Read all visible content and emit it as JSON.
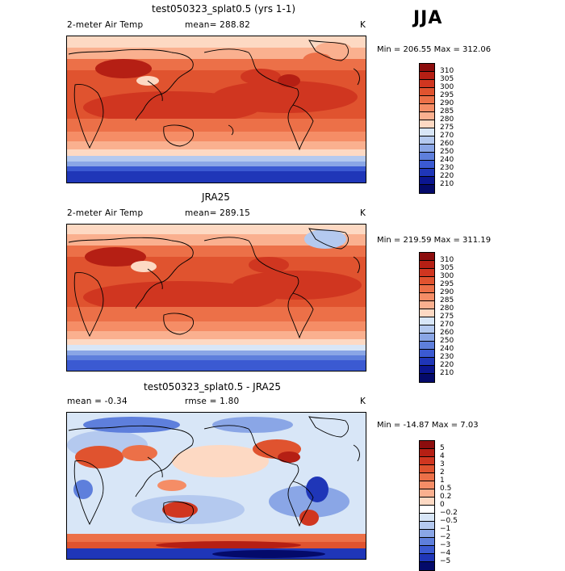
{
  "season": "JJA",
  "panels": [
    {
      "title": "test050323_splat0.5 (yrs 1-1)",
      "left_label": "2-meter Air Temp",
      "center_label": "mean= 288.82",
      "unit": "K",
      "minmax": "Min = 206.55 Max = 312.06",
      "levels": [
        "310",
        "305",
        "300",
        "295",
        "290",
        "285",
        "280",
        "275",
        "270",
        "260",
        "250",
        "240",
        "230",
        "220",
        "210"
      ],
      "colors": [
        "#8c0d0d",
        "#b51f14",
        "#d03620",
        "#e0532f",
        "#ec7048",
        "#f58d66",
        "#fab08f",
        "#fdd9c3",
        "#d8e6f7",
        "#b4c9ef",
        "#8aa6e6",
        "#5e7fdc",
        "#3b5ad2",
        "#1f36b8",
        "#0b1690",
        "#040a6a"
      ]
    },
    {
      "title": "JRA25",
      "left_label": "2-meter Air Temp",
      "center_label": "mean= 289.15",
      "unit": "K",
      "minmax": "Min = 219.59 Max = 311.19",
      "levels": [
        "310",
        "305",
        "300",
        "295",
        "290",
        "285",
        "280",
        "275",
        "270",
        "260",
        "250",
        "240",
        "230",
        "220",
        "210"
      ],
      "colors": [
        "#8c0d0d",
        "#b51f14",
        "#d03620",
        "#e0532f",
        "#ec7048",
        "#f58d66",
        "#fab08f",
        "#fdd9c3",
        "#d8e6f7",
        "#b4c9ef",
        "#8aa6e6",
        "#5e7fdc",
        "#3b5ad2",
        "#1f36b8",
        "#0b1690",
        "#040a6a"
      ]
    },
    {
      "title": "test050323_splat0.5 - JRA25",
      "left_label": "mean =   -0.34",
      "center_label": "rmse =   1.80",
      "unit": "K",
      "minmax": "Min = -14.87 Max =   7.03",
      "levels": [
        "5",
        "4",
        "3",
        "2",
        "1",
        "0.5",
        "0.2",
        "0",
        "−0.2",
        "−0.5",
        "−1",
        "−2",
        "−3",
        "−4",
        "−5"
      ],
      "colors": [
        "#8c0d0d",
        "#b51f14",
        "#d03620",
        "#e0532f",
        "#ec7048",
        "#f58d66",
        "#fab08f",
        "#fdd9c3",
        "#ffffff",
        "#d8e6f7",
        "#b4c9ef",
        "#8aa6e6",
        "#5e7fdc",
        "#3b5ad2",
        "#1f36b8",
        "#040a6a"
      ]
    }
  ]
}
